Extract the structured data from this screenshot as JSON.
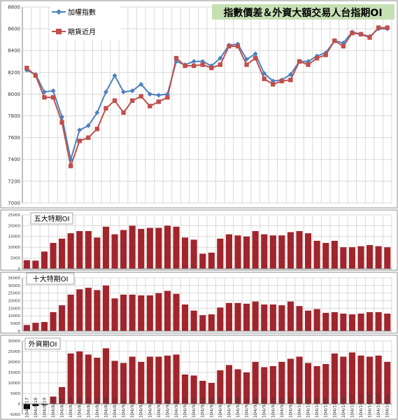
{
  "chart_data": [
    {
      "type": "line",
      "title": "指數價差＆外資大額交易人台指期OI",
      "series": [
        {
          "name": "加權指數",
          "color": "#4f81bd",
          "values": [
            8220,
            8180,
            8020,
            8030,
            7790,
            7400,
            7670,
            7710,
            7830,
            8020,
            8170,
            8020,
            8030,
            8090,
            8000,
            7990,
            8000,
            8300,
            8270,
            8300,
            8300,
            8260,
            8330,
            8450,
            8460,
            8320,
            8370,
            8190,
            8120,
            8130,
            8180,
            8300,
            8300,
            8350,
            8380,
            8490,
            8470,
            8570,
            8550,
            8530,
            8600,
            8600
          ]
        },
        {
          "name": "期貨近月",
          "color": "#c0504d",
          "values": [
            8240,
            8170,
            7970,
            7970,
            7740,
            7340,
            7570,
            7600,
            7680,
            7870,
            7940,
            7830,
            7940,
            7980,
            7890,
            7930,
            7970,
            8330,
            8260,
            8260,
            8270,
            8240,
            8270,
            8440,
            8440,
            8270,
            8330,
            8140,
            8090,
            8120,
            8130,
            8300,
            8270,
            8330,
            8360,
            8490,
            8440,
            8560,
            8550,
            8520,
            8610,
            8610
          ]
        }
      ],
      "ylim": [
        7000,
        8800
      ],
      "yticks": [
        7000,
        7200,
        7400,
        7600,
        7800,
        8000,
        8200,
        8400,
        8600,
        8800
      ],
      "legend": "top-left",
      "grid": true
    },
    {
      "type": "bar",
      "title": "五大特期OI",
      "color": "#a0252c",
      "values": [
        4000,
        3800,
        8000,
        12000,
        14000,
        16500,
        17500,
        17500,
        14500,
        19500,
        16000,
        18000,
        20000,
        18500,
        19000,
        19000,
        20000,
        19500,
        14500,
        13500,
        7000,
        7500,
        14000,
        16000,
        15500,
        15000,
        17500,
        16000,
        15500,
        15500,
        17000,
        17500,
        16500,
        13000,
        12000,
        13000,
        10000,
        10000,
        10500,
        11000,
        10500,
        10000
      ],
      "ylim": [
        0,
        25000
      ],
      "yticks": [
        0,
        5000,
        10000,
        15000,
        20000,
        25000
      ],
      "grid": true
    },
    {
      "type": "bar",
      "title": "十大特期OI",
      "color": "#a0252c",
      "values": [
        4000,
        5500,
        6000,
        12500,
        17000,
        24000,
        27500,
        28500,
        27000,
        30000,
        21500,
        24000,
        24000,
        23500,
        23500,
        25000,
        26500,
        24500,
        17500,
        13500,
        10500,
        11000,
        15500,
        18500,
        18500,
        18000,
        19500,
        17500,
        17500,
        17000,
        19500,
        16500,
        13500,
        14500,
        12000,
        12500,
        11500,
        11000,
        11500,
        12500,
        12500,
        11500
      ],
      "ylim": [
        0,
        35000
      ],
      "yticks": [
        0,
        5000,
        10000,
        15000,
        20000,
        25000,
        30000,
        35000
      ],
      "grid": true
    },
    {
      "type": "bar",
      "title": "外資期OI",
      "color": "#a0252c",
      "values": [
        -2500,
        -1000,
        -500,
        3500,
        8000,
        24000,
        25000,
        23500,
        22000,
        26500,
        20500,
        19500,
        22500,
        20000,
        22500,
        22500,
        23000,
        23500,
        14000,
        13500,
        11000,
        10000,
        16000,
        18500,
        16500,
        15000,
        20000,
        17500,
        18000,
        20000,
        21500,
        22500,
        19500,
        18000,
        19000,
        24000,
        22500,
        24500,
        23000,
        22500,
        23000,
        20000
      ],
      "ylim": [
        -5000,
        30000
      ],
      "yticks": [
        -5000,
        0,
        5000,
        10000,
        15000,
        20000,
        25000,
        30000
      ],
      "grid": true
    }
  ],
  "x_labels": [
    "104/8/17",
    "104/8/18",
    "104/8/19",
    "104/8/20",
    "104/8/21",
    "104/8/24",
    "104/8/25",
    "104/8/26",
    "104/8/27",
    "104/8/28",
    "104/8/31",
    "104/9/1",
    "104/9/2",
    "104/9/3",
    "104/9/4",
    "104/9/7",
    "104/9/8",
    "104/9/9",
    "104/9/10",
    "104/9/11",
    "104/9/14",
    "104/9/15",
    "104/9/16",
    "104/9/17",
    "104/9/18",
    "104/9/21",
    "104/9/22",
    "104/9/23",
    "104/9/24",
    "104/9/25",
    "104/9/30",
    "104/10/1",
    "104/10/2",
    "104/10/5",
    "104/10/6",
    "104/10/7",
    "104/10/8",
    "104/10/12",
    "104/10/13",
    "104/10/14",
    "104/10/15",
    "104/10/16"
  ],
  "colors": {
    "title_bg": "#c6e0b4",
    "panel_border": "#8c8c8c",
    "grid": "#d9d9d9",
    "bar": "#a0252c",
    "negative_bar": "#000000"
  }
}
